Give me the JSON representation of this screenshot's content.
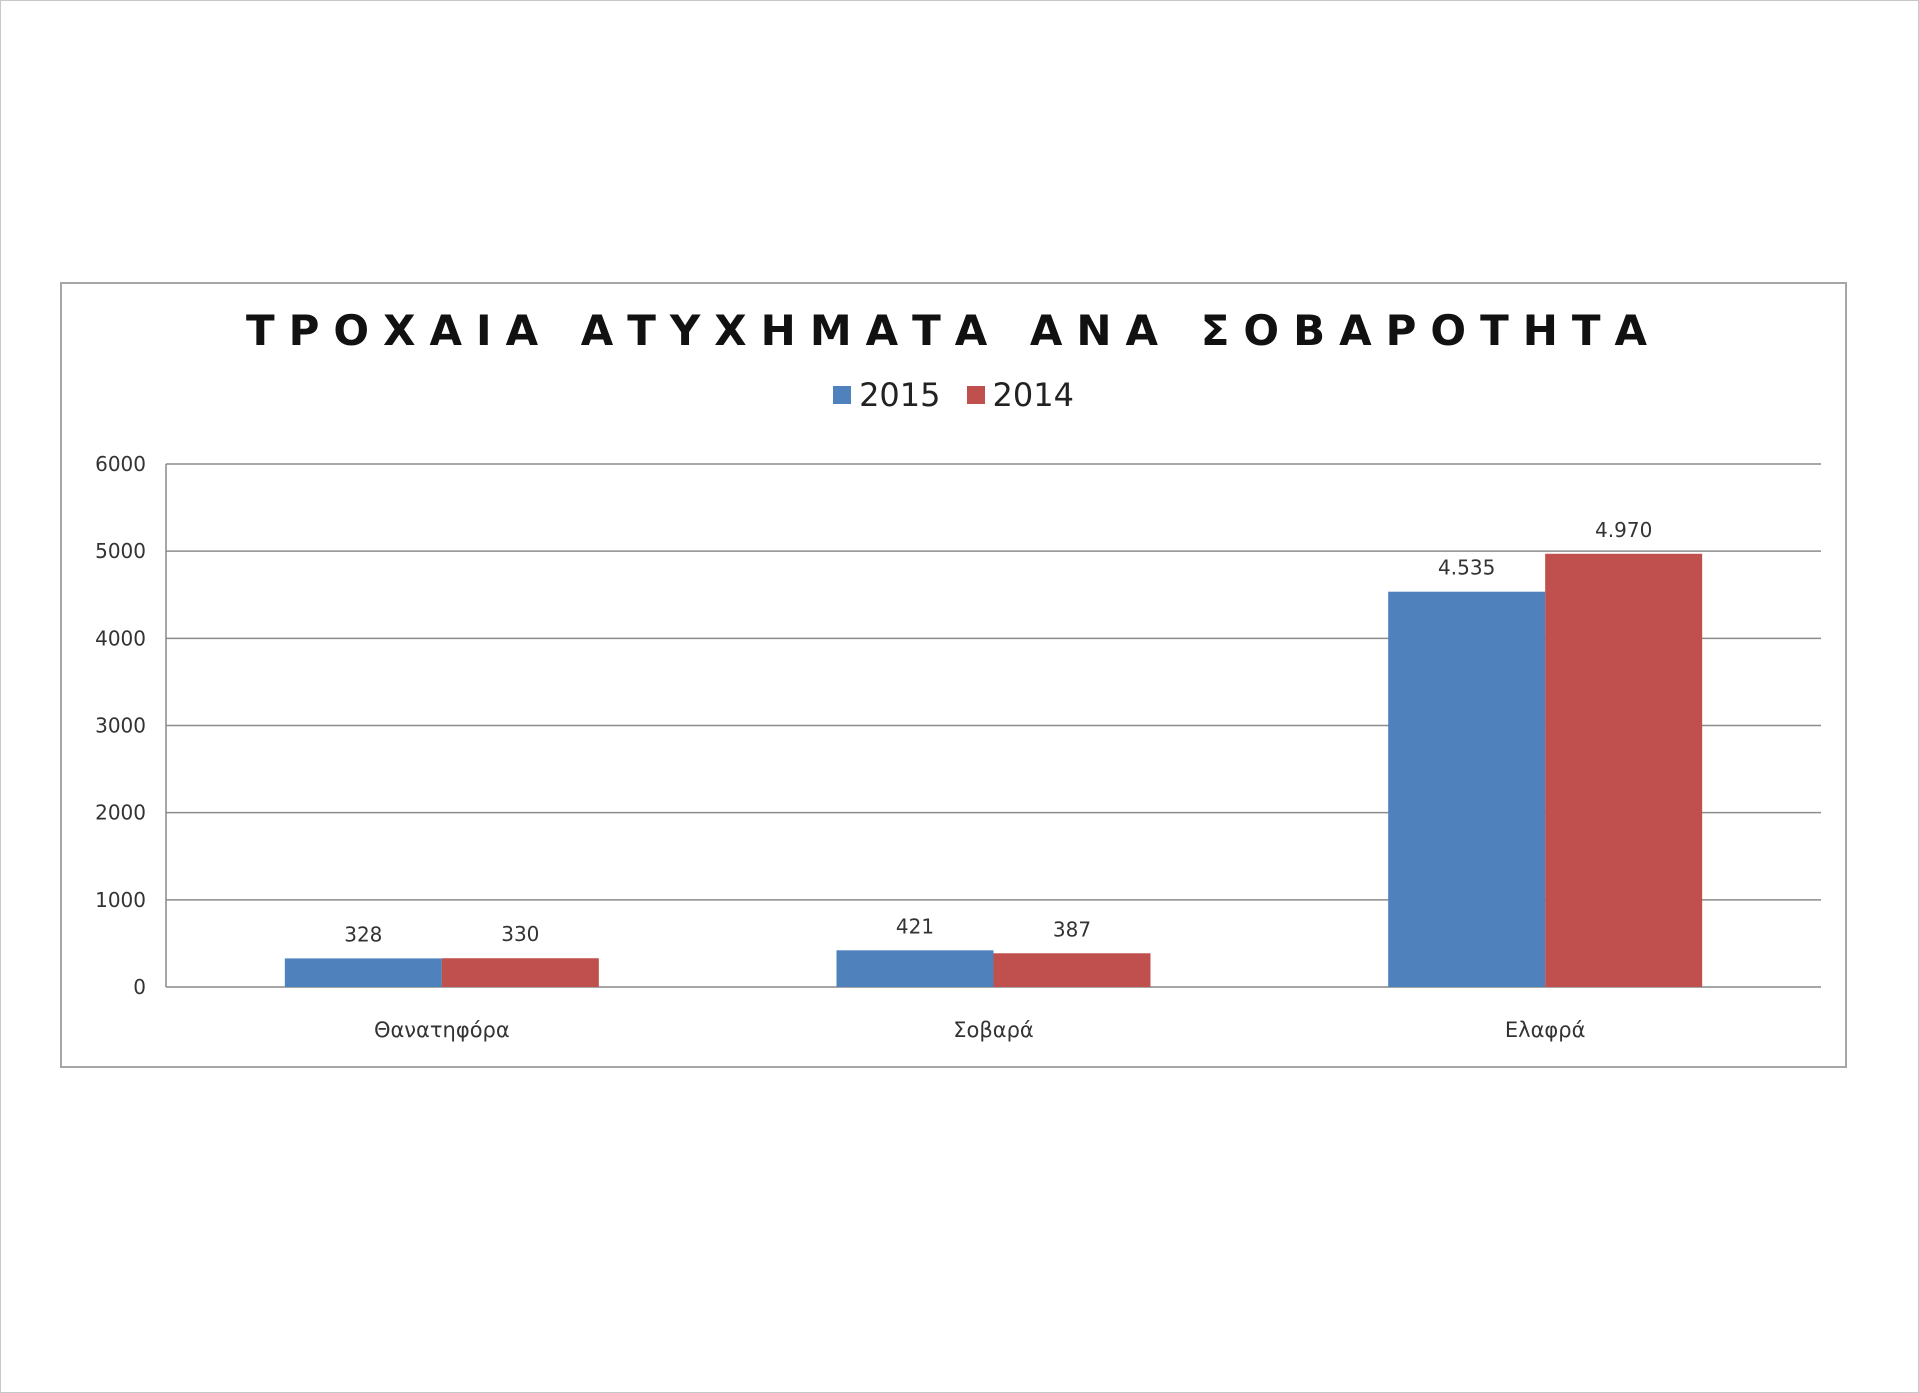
{
  "chart_data": {
    "type": "bar",
    "title": "ΤΡΟΧΑΙΑ ΑΤΥΧΗΜΑΤΑ ΑΝΑ ΣΟΒΑΡΟΤΗΤΑ",
    "categories": [
      "Θανατηφόρα",
      "Σοβαρά",
      "Ελαφρά"
    ],
    "series": [
      {
        "name": "2015",
        "color": "#4f81bd",
        "values": [
          328,
          421,
          4535
        ],
        "labels": [
          "328",
          "421",
          "4.535"
        ]
      },
      {
        "name": "2014",
        "color": "#c0504d",
        "values": [
          330,
          387,
          4970
        ],
        "labels": [
          "330",
          "387",
          "4.970"
        ]
      }
    ],
    "ylim": [
      0,
      6000
    ],
    "yticks": [
      0,
      1000,
      2000,
      3000,
      4000,
      5000,
      6000
    ],
    "ytick_labels": [
      "0",
      "1000",
      "2000",
      "3000",
      "4000",
      "5000",
      "6000"
    ],
    "grid": true,
    "legend": "top-center",
    "xlabel": "",
    "ylabel": ""
  }
}
